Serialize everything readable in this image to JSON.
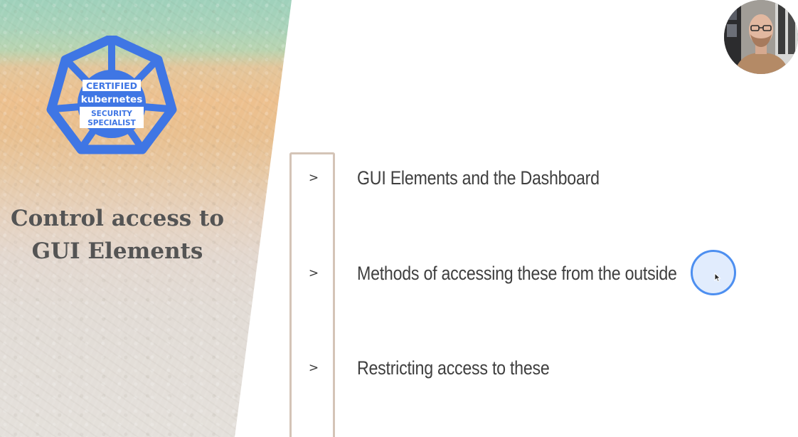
{
  "badge": {
    "line1": "CERTIFIED",
    "line2": "kubernetes",
    "line3": "SECURITY",
    "line4": "SPECIALIST",
    "color": "#3f76e4"
  },
  "slide": {
    "title_line1": "Control access to",
    "title_line2": "GUI Elements",
    "items": [
      {
        "marker": ">",
        "label": "GUI Elements and the Dashboard"
      },
      {
        "marker": ">",
        "label": "Methods of accessing these from the outside"
      },
      {
        "marker": ">",
        "label": "Restricting access to these"
      }
    ]
  },
  "icons": {
    "badge": "kubernetes-helm-badge-icon",
    "cursor": "mouse-pointer-icon",
    "webcam": "presenter-avatar"
  }
}
